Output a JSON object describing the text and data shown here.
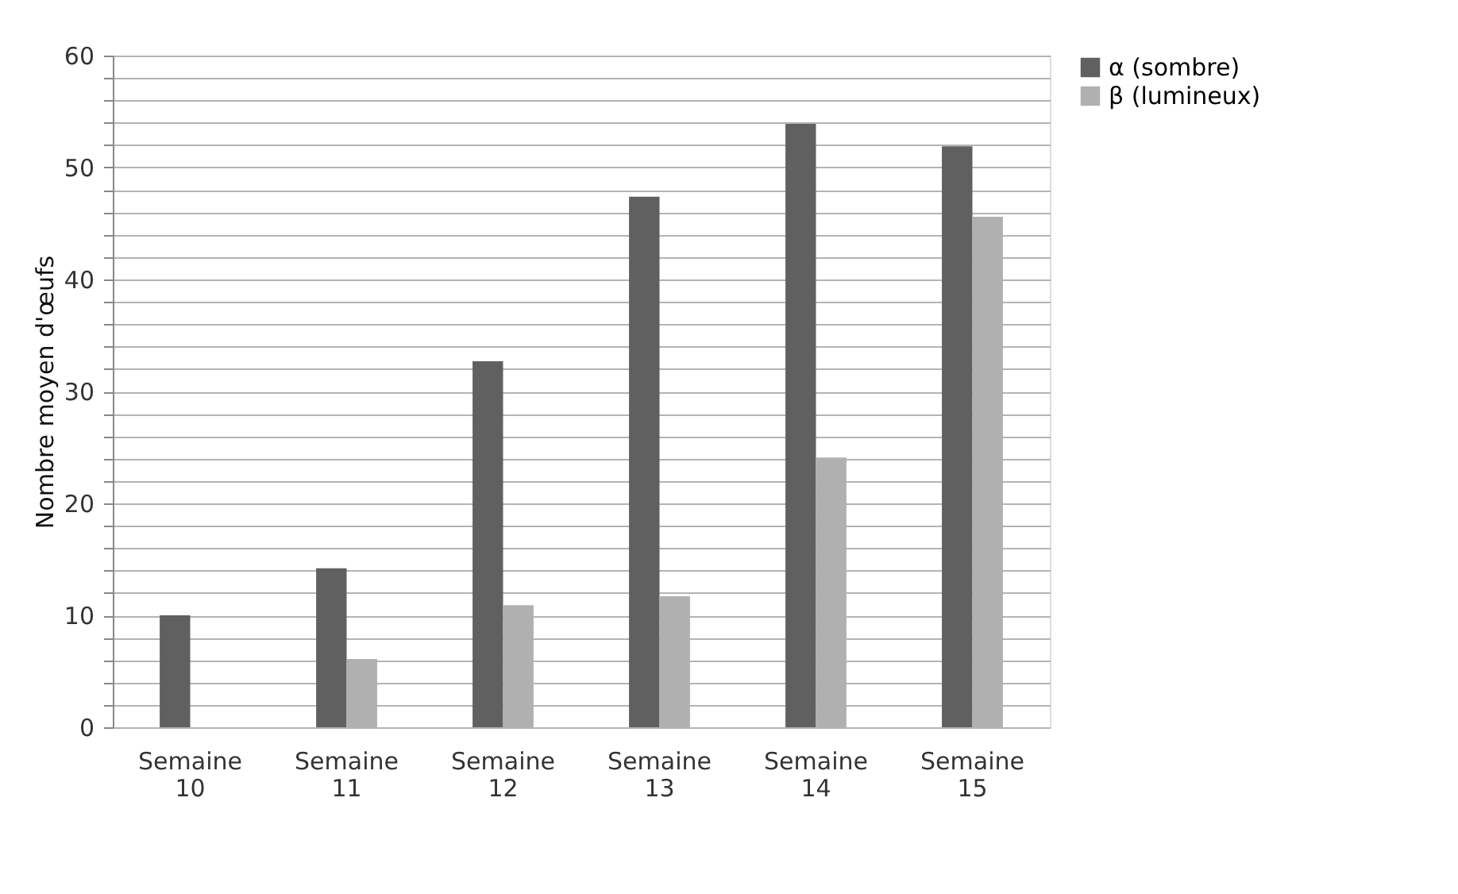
{
  "chart_data": {
    "type": "bar",
    "ylabel": "Nombre moyen d'œufs",
    "categories": [
      "Semaine 10",
      "Semaine 11",
      "Semaine 12",
      "Semaine 13",
      "Semaine 14",
      "Semaine 15"
    ],
    "series": [
      {
        "name": "α (sombre)",
        "color": "#606060",
        "values": [
          10.0,
          14.2,
          32.7,
          47.4,
          53.9,
          51.9
        ]
      },
      {
        "name": "β (lumineux)",
        "color": "#b0b0b0",
        "values": [
          null,
          6.1,
          10.9,
          11.7,
          24.1,
          45.6
        ]
      }
    ],
    "ylim": [
      0,
      60
    ],
    "yticks": [
      0,
      {
        "value": 2,
        "label": null
      },
      {
        "value": 4,
        "label": null
      },
      {
        "value": 6,
        "label": null
      },
      {
        "value": 8,
        "label": null
      },
      10,
      {
        "value": 12,
        "label": null
      },
      {
        "value": 14,
        "label": null
      },
      {
        "value": 16,
        "label": null
      },
      {
        "value": 18,
        "label": null
      },
      20,
      {
        "value": 22,
        "label": null
      },
      {
        "value": 24,
        "label": null
      },
      {
        "value": 26,
        "label": null
      },
      {
        "value": 28,
        "label": null
      },
      30,
      {
        "value": 32,
        "label": null
      },
      {
        "value": 34,
        "label": null
      },
      {
        "value": 36,
        "label": null
      },
      {
        "value": 38,
        "label": null
      },
      40,
      {
        "value": 42,
        "label": null
      },
      {
        "value": 44,
        "label": null
      },
      {
        "value": 46,
        "label": null
      },
      {
        "value": 48,
        "label": null
      },
      50,
      {
        "value": 52,
        "label": null
      },
      {
        "value": 54,
        "label": null
      },
      {
        "value": 56,
        "label": null
      },
      {
        "value": 58,
        "label": null
      },
      60
    ],
    "grid": "y",
    "legend": "right"
  }
}
